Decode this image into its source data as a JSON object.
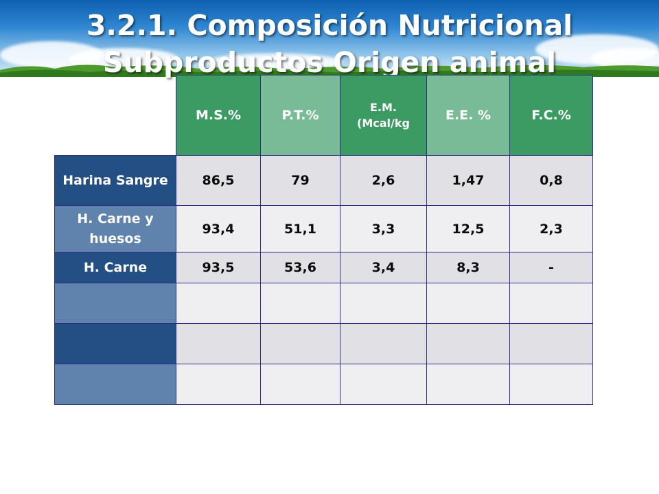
{
  "slide": {
    "title_line1": "3.2.1. Composición Nutricional",
    "title_line2": "Subproductos Origen animal"
  },
  "table": {
    "headers": [
      "M.S.%",
      "P.T.%",
      "E.M. (Mcal/kg",
      "E.E. %",
      "F.C.%"
    ],
    "rows": [
      {
        "label": "Harina Sangre",
        "values": [
          "86,5",
          "79",
          "2,6",
          "1,47",
          "0,8"
        ]
      },
      {
        "label": "H. Carne y huesos",
        "values": [
          "93,4",
          "51,1",
          "3,3",
          "12,5",
          "2,3"
        ]
      },
      {
        "label": "H. Carne",
        "values": [
          "93,5",
          "53,6",
          "3,4",
          "8,3",
          "-"
        ]
      },
      {
        "label": "",
        "values": [
          "",
          "",
          "",
          "",
          ""
        ]
      },
      {
        "label": "",
        "values": [
          "",
          "",
          "",
          "",
          ""
        ]
      },
      {
        "label": "",
        "values": [
          "",
          "",
          "",
          "",
          ""
        ]
      }
    ]
  },
  "colors": {
    "header_green_dark": "#3c9b63",
    "header_green_light": "#79bb96",
    "row_blue_dark": "#234f85",
    "row_blue_light": "#5f83ad",
    "border": "#2b2e8c"
  }
}
